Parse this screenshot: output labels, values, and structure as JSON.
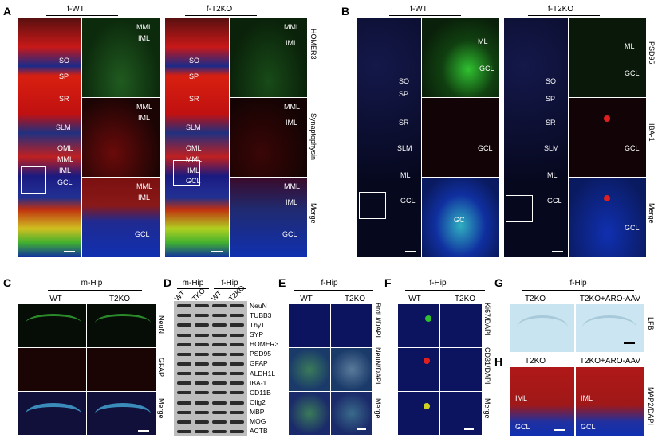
{
  "panels": {
    "A": {
      "letter": "A",
      "groups": [
        "f-WT",
        "f-T2KO"
      ],
      "layers_left": [
        "SO",
        "SP",
        "SR",
        "SLM",
        "OML",
        "MML",
        "IML",
        "GCL"
      ],
      "zoom_labels": [
        [
          "MML",
          "IML"
        ],
        [
          "MML",
          "IML"
        ],
        [
          "MML",
          "IML",
          "GCL"
        ]
      ],
      "rows": [
        "HOMER3",
        "Synaptophysin",
        "Merge"
      ]
    },
    "B": {
      "letter": "B",
      "groups": [
        "f-WT",
        "f-T2KO"
      ],
      "layers_left": [
        "SO",
        "SP",
        "SR",
        "SLM",
        "ML",
        "GCL"
      ],
      "zoom_labels_wt": [
        [
          "ML",
          "GCL"
        ],
        [
          "GCL"
        ],
        [
          "GC"
        ]
      ],
      "zoom_labels_ko": [
        [
          "ML",
          "GCL"
        ],
        [
          "GCL"
        ],
        [
          "GCL"
        ]
      ],
      "rows": [
        "PSD95",
        "IBA-1",
        "Merge"
      ]
    },
    "C": {
      "letter": "C",
      "group": "m-Hip",
      "cols": [
        "WT",
        "T2KO"
      ],
      "rows": [
        "NeuN",
        "GFAP",
        "Merge"
      ]
    },
    "D": {
      "letter": "D",
      "groups": [
        "m-Hip",
        "f-Hip"
      ],
      "cols": [
        "WT",
        "TKO",
        "WT",
        "T2KO"
      ],
      "proteins": [
        "NeuN",
        "TUBB3",
        "Thy1",
        "SYP",
        "HOMER3",
        "PSD95",
        "GFAP",
        "ALDH1L",
        "IBA-1",
        "CD11B",
        "Olig2",
        "MBP",
        "MOG",
        "ACTB"
      ]
    },
    "E": {
      "letter": "E",
      "group": "f-Hip",
      "cols": [
        "WT",
        "T2KO"
      ],
      "rows": [
        "BrdU/DAPI",
        "NeuN/DAPI",
        "Merge"
      ]
    },
    "F": {
      "letter": "F",
      "group": "f-Hip",
      "cols": [
        "WT",
        "T2KO"
      ],
      "rows": [
        "Ki67/DAPI",
        "CD31/DAPI",
        "Merge"
      ]
    },
    "G": {
      "letter": "G",
      "group": "f-Hip",
      "cols": [
        "T2KO",
        "T2KO+ARO-AAV"
      ],
      "row": "LFB"
    },
    "H": {
      "letter": "H",
      "cols": [
        "T2KO",
        "T2KO+ARO-AAV"
      ],
      "labels": [
        "IML",
        "GCL"
      ],
      "row": "MAP2/DAPI"
    }
  },
  "colors": {
    "red": "#e0201a",
    "blue": "#1030c8",
    "green": "#30c030",
    "lfb": "#bfe0ee"
  }
}
